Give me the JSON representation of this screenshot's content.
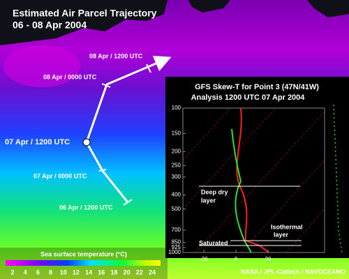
{
  "header": {
    "title": "Estimated Air Parcel Trajectory",
    "subtitle": "06 - 08 Apr 2004"
  },
  "trajectory": {
    "labels": [
      "08 Apr / 1200  UTC",
      "08 Apr / 0000  UTC",
      "07 Apr / 1200  UTC",
      "07 Apr / 0000  UTC",
      "06 Apr / 1200  UTC"
    ]
  },
  "colorbar": {
    "title": "Sea surface temperature (°C)",
    "ticks": [
      2,
      4,
      6,
      8,
      10,
      12,
      14,
      16,
      18,
      20,
      22,
      24
    ]
  },
  "skew_t": {
    "title": "GFS Skew-T for Point 3 (47N/41W)",
    "subtitle": "Analysis 1200 UTC  07 Apr 2004",
    "pressure_ticks": [
      100,
      150,
      200,
      250,
      300,
      400,
      500,
      700,
      850,
      925,
      1000
    ],
    "temperature_ticks": [
      -20,
      0,
      20
    ],
    "annotations": {
      "dry": [
        "Deep dry",
        "layer"
      ],
      "isothermal": [
        "Isothermal",
        "layer"
      ],
      "saturated": "Saturated"
    }
  },
  "credit": "NASA / JPL-Caltech / NAVOCEANO"
}
